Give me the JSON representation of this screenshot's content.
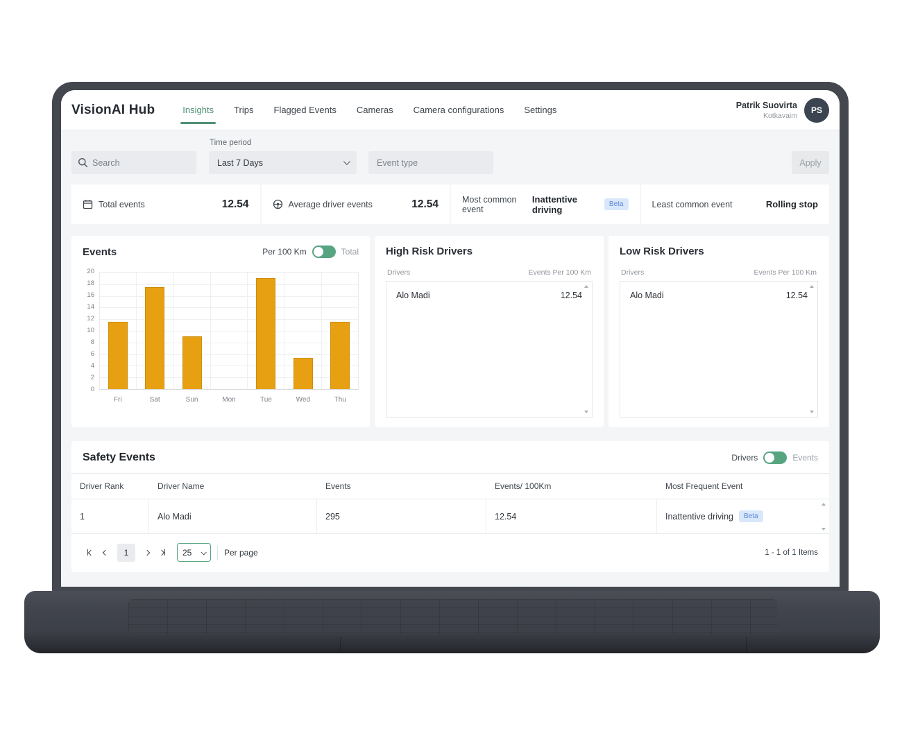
{
  "header": {
    "brand": "VisionAI Hub",
    "tabs": [
      {
        "label": "Insights"
      },
      {
        "label": "Trips"
      },
      {
        "label": "Flagged Events"
      },
      {
        "label": "Cameras"
      },
      {
        "label": "Camera configurations"
      },
      {
        "label": "Settings"
      }
    ],
    "user": {
      "name": "Patrik Suovirta",
      "org": "Kotkavaim",
      "initials": "PS"
    }
  },
  "filters": {
    "search_placeholder": "Search",
    "time_period_label": "Time period",
    "time_period_value": "Last 7 Days",
    "event_type_placeholder": "Event type",
    "apply_label": "Apply"
  },
  "stats": {
    "total_events": {
      "label": "Total events",
      "value": "12.54"
    },
    "avg_driver_events": {
      "label": "Average driver events",
      "value": "12.54"
    },
    "most_common": {
      "label": "Most common event",
      "value": "Inattentive driving",
      "badge": "Beta"
    },
    "least_common": {
      "label": "Least common event",
      "value": "Rolling stop"
    }
  },
  "events_card": {
    "title": "Events",
    "toggle_left": "Per 100 Km",
    "toggle_right": "Total"
  },
  "chart_data": {
    "type": "bar",
    "title": "Events",
    "categories": [
      "Fri",
      "Sat",
      "Sun",
      "Mon",
      "Tue",
      "Wed",
      "Thu"
    ],
    "values": [
      11.6,
      17.5,
      9.1,
      0,
      19,
      5.4,
      11.5
    ],
    "xlabel": "",
    "ylabel": "",
    "ylim": [
      0,
      20
    ],
    "ytick_step": 2,
    "bar_color": "#e8a013",
    "bar_border": "#cd8e05",
    "grid": true,
    "legend": false,
    "selected_mode": "Per 100 Km"
  },
  "high_risk": {
    "title": "High Risk Drivers",
    "col_driver": "Drivers",
    "col_value": "Events Per 100 Km",
    "rows": [
      {
        "driver": "Alo Madi",
        "value": "12.54"
      }
    ]
  },
  "low_risk": {
    "title": "Low Risk Drivers",
    "col_driver": "Drivers",
    "col_value": "Events Per 100 Km",
    "rows": [
      {
        "driver": "Alo Madi",
        "value": "12.54"
      }
    ]
  },
  "safety": {
    "title": "Safety Events",
    "toggle_left": "Drivers",
    "toggle_right": "Events",
    "columns": [
      "Driver Rank",
      "Driver Name",
      "Events",
      "Events/ 100Km",
      "Most Frequent Event"
    ],
    "rows": [
      {
        "rank": "1",
        "name": "Alo Madi",
        "events": "295",
        "per100": "12.54",
        "frequent": "Inattentive driving",
        "badge": "Beta"
      }
    ],
    "pagination": {
      "page": "1",
      "per_page": "25",
      "per_page_label": "Per page",
      "items_label": "1 - 1 of 1 Items"
    }
  },
  "colors": {
    "accent_green": "#4d9072",
    "toggle_green": "#57a481",
    "bar_orange": "#e8a013",
    "beta_badge_bg": "#d9e7fa",
    "beta_badge_text": "#5b86d7"
  }
}
